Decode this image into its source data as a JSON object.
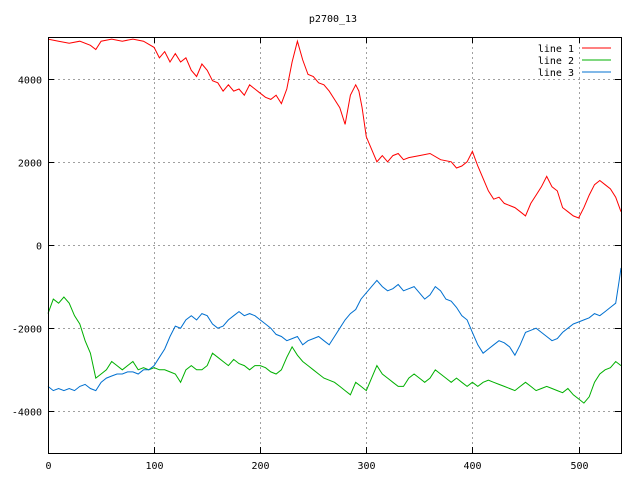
{
  "chart_data": {
    "type": "line",
    "title": "p2700_13",
    "xlim": [
      0,
      540
    ],
    "ylim": [
      -5000,
      5000
    ],
    "x_ticks": [
      0,
      100,
      200,
      300,
      400,
      500
    ],
    "y_ticks": [
      -4000,
      -2000,
      0,
      2000,
      4000
    ],
    "grid": true,
    "legend_position": "top-right",
    "series": [
      {
        "name": "line 1",
        "color": "#ff0000",
        "points": [
          [
            0,
            4950
          ],
          [
            10,
            4900
          ],
          [
            20,
            4850
          ],
          [
            30,
            4900
          ],
          [
            40,
            4800
          ],
          [
            45,
            4700
          ],
          [
            50,
            4900
          ],
          [
            60,
            4950
          ],
          [
            70,
            4900
          ],
          [
            80,
            4950
          ],
          [
            90,
            4900
          ],
          [
            100,
            4750
          ],
          [
            105,
            4500
          ],
          [
            110,
            4650
          ],
          [
            115,
            4400
          ],
          [
            120,
            4600
          ],
          [
            125,
            4400
          ],
          [
            130,
            4500
          ],
          [
            135,
            4200
          ],
          [
            140,
            4050
          ],
          [
            145,
            4350
          ],
          [
            150,
            4200
          ],
          [
            155,
            3950
          ],
          [
            160,
            3900
          ],
          [
            165,
            3700
          ],
          [
            170,
            3850
          ],
          [
            175,
            3700
          ],
          [
            180,
            3750
          ],
          [
            185,
            3600
          ],
          [
            190,
            3850
          ],
          [
            195,
            3750
          ],
          [
            200,
            3650
          ],
          [
            205,
            3550
          ],
          [
            210,
            3500
          ],
          [
            215,
            3600
          ],
          [
            220,
            3400
          ],
          [
            225,
            3750
          ],
          [
            230,
            4400
          ],
          [
            235,
            4900
          ],
          [
            240,
            4450
          ],
          [
            245,
            4100
          ],
          [
            250,
            4050
          ],
          [
            255,
            3900
          ],
          [
            260,
            3850
          ],
          [
            265,
            3700
          ],
          [
            270,
            3500
          ],
          [
            275,
            3300
          ],
          [
            280,
            2900
          ],
          [
            285,
            3600
          ],
          [
            290,
            3850
          ],
          [
            293,
            3700
          ],
          [
            296,
            3300
          ],
          [
            300,
            2600
          ],
          [
            305,
            2300
          ],
          [
            310,
            2000
          ],
          [
            315,
            2150
          ],
          [
            320,
            2000
          ],
          [
            325,
            2150
          ],
          [
            330,
            2200
          ],
          [
            335,
            2050
          ],
          [
            340,
            2100
          ],
          [
            350,
            2150
          ],
          [
            360,
            2200
          ],
          [
            370,
            2050
          ],
          [
            380,
            2000
          ],
          [
            385,
            1850
          ],
          [
            390,
            1900
          ],
          [
            395,
            2000
          ],
          [
            400,
            2250
          ],
          [
            405,
            1900
          ],
          [
            410,
            1600
          ],
          [
            415,
            1300
          ],
          [
            420,
            1100
          ],
          [
            425,
            1150
          ],
          [
            430,
            1000
          ],
          [
            435,
            950
          ],
          [
            440,
            900
          ],
          [
            445,
            800
          ],
          [
            450,
            700
          ],
          [
            455,
            1000
          ],
          [
            460,
            1200
          ],
          [
            465,
            1400
          ],
          [
            470,
            1650
          ],
          [
            475,
            1400
          ],
          [
            480,
            1300
          ],
          [
            485,
            900
          ],
          [
            490,
            800
          ],
          [
            495,
            700
          ],
          [
            500,
            650
          ],
          [
            505,
            900
          ],
          [
            510,
            1200
          ],
          [
            515,
            1450
          ],
          [
            520,
            1550
          ],
          [
            525,
            1450
          ],
          [
            530,
            1350
          ],
          [
            535,
            1150
          ],
          [
            540,
            800
          ]
        ]
      },
      {
        "name": "line 2",
        "color": "#00b000",
        "points": [
          [
            0,
            -1650
          ],
          [
            5,
            -1300
          ],
          [
            10,
            -1400
          ],
          [
            15,
            -1250
          ],
          [
            20,
            -1400
          ],
          [
            25,
            -1700
          ],
          [
            30,
            -1900
          ],
          [
            35,
            -2300
          ],
          [
            40,
            -2600
          ],
          [
            45,
            -3200
          ],
          [
            50,
            -3100
          ],
          [
            55,
            -3000
          ],
          [
            60,
            -2800
          ],
          [
            65,
            -2900
          ],
          [
            70,
            -3000
          ],
          [
            75,
            -2900
          ],
          [
            80,
            -2800
          ],
          [
            85,
            -3000
          ],
          [
            90,
            -2950
          ],
          [
            95,
            -3000
          ],
          [
            100,
            -2950
          ],
          [
            105,
            -3000
          ],
          [
            110,
            -3000
          ],
          [
            115,
            -3050
          ],
          [
            120,
            -3100
          ],
          [
            125,
            -3300
          ],
          [
            130,
            -3000
          ],
          [
            135,
            -2900
          ],
          [
            140,
            -3000
          ],
          [
            145,
            -3000
          ],
          [
            150,
            -2900
          ],
          [
            155,
            -2600
          ],
          [
            160,
            -2700
          ],
          [
            165,
            -2800
          ],
          [
            170,
            -2900
          ],
          [
            175,
            -2750
          ],
          [
            180,
            -2850
          ],
          [
            185,
            -2900
          ],
          [
            190,
            -3000
          ],
          [
            195,
            -2900
          ],
          [
            200,
            -2900
          ],
          [
            205,
            -2950
          ],
          [
            210,
            -3050
          ],
          [
            215,
            -3100
          ],
          [
            220,
            -3000
          ],
          [
            225,
            -2700
          ],
          [
            230,
            -2450
          ],
          [
            235,
            -2650
          ],
          [
            240,
            -2800
          ],
          [
            245,
            -2900
          ],
          [
            250,
            -3000
          ],
          [
            255,
            -3100
          ],
          [
            260,
            -3200
          ],
          [
            265,
            -3250
          ],
          [
            270,
            -3300
          ],
          [
            275,
            -3400
          ],
          [
            280,
            -3500
          ],
          [
            285,
            -3600
          ],
          [
            290,
            -3300
          ],
          [
            295,
            -3400
          ],
          [
            300,
            -3500
          ],
          [
            305,
            -3200
          ],
          [
            310,
            -2900
          ],
          [
            315,
            -3100
          ],
          [
            320,
            -3200
          ],
          [
            325,
            -3300
          ],
          [
            330,
            -3400
          ],
          [
            335,
            -3400
          ],
          [
            340,
            -3200
          ],
          [
            345,
            -3100
          ],
          [
            350,
            -3200
          ],
          [
            355,
            -3300
          ],
          [
            360,
            -3200
          ],
          [
            365,
            -3000
          ],
          [
            370,
            -3100
          ],
          [
            375,
            -3200
          ],
          [
            380,
            -3300
          ],
          [
            385,
            -3200
          ],
          [
            390,
            -3300
          ],
          [
            395,
            -3400
          ],
          [
            400,
            -3300
          ],
          [
            405,
            -3400
          ],
          [
            410,
            -3300
          ],
          [
            415,
            -3250
          ],
          [
            420,
            -3300
          ],
          [
            425,
            -3350
          ],
          [
            430,
            -3400
          ],
          [
            435,
            -3450
          ],
          [
            440,
            -3500
          ],
          [
            445,
            -3400
          ],
          [
            450,
            -3300
          ],
          [
            455,
            -3400
          ],
          [
            460,
            -3500
          ],
          [
            465,
            -3450
          ],
          [
            470,
            -3400
          ],
          [
            475,
            -3450
          ],
          [
            480,
            -3500
          ],
          [
            485,
            -3550
          ],
          [
            490,
            -3450
          ],
          [
            495,
            -3600
          ],
          [
            500,
            -3700
          ],
          [
            505,
            -3800
          ],
          [
            510,
            -3650
          ],
          [
            515,
            -3300
          ],
          [
            520,
            -3100
          ],
          [
            525,
            -3000
          ],
          [
            530,
            -2950
          ],
          [
            535,
            -2800
          ],
          [
            540,
            -2900
          ]
        ]
      },
      {
        "name": "line 3",
        "color": "#0070d0",
        "points": [
          [
            0,
            -3400
          ],
          [
            5,
            -3500
          ],
          [
            10,
            -3450
          ],
          [
            15,
            -3500
          ],
          [
            20,
            -3450
          ],
          [
            25,
            -3500
          ],
          [
            30,
            -3400
          ],
          [
            35,
            -3350
          ],
          [
            40,
            -3450
          ],
          [
            45,
            -3500
          ],
          [
            50,
            -3300
          ],
          [
            55,
            -3200
          ],
          [
            60,
            -3150
          ],
          [
            65,
            -3100
          ],
          [
            70,
            -3100
          ],
          [
            75,
            -3050
          ],
          [
            80,
            -3050
          ],
          [
            85,
            -3100
          ],
          [
            90,
            -3000
          ],
          [
            95,
            -3000
          ],
          [
            100,
            -2900
          ],
          [
            105,
            -2700
          ],
          [
            110,
            -2500
          ],
          [
            115,
            -2200
          ],
          [
            120,
            -1950
          ],
          [
            125,
            -2000
          ],
          [
            130,
            -1800
          ],
          [
            135,
            -1700
          ],
          [
            140,
            -1800
          ],
          [
            145,
            -1650
          ],
          [
            150,
            -1700
          ],
          [
            155,
            -1900
          ],
          [
            160,
            -2000
          ],
          [
            165,
            -1950
          ],
          [
            170,
            -1800
          ],
          [
            175,
            -1700
          ],
          [
            180,
            -1600
          ],
          [
            185,
            -1700
          ],
          [
            190,
            -1650
          ],
          [
            195,
            -1700
          ],
          [
            200,
            -1800
          ],
          [
            205,
            -1900
          ],
          [
            210,
            -2000
          ],
          [
            215,
            -2150
          ],
          [
            220,
            -2200
          ],
          [
            225,
            -2300
          ],
          [
            230,
            -2250
          ],
          [
            235,
            -2200
          ],
          [
            240,
            -2400
          ],
          [
            245,
            -2300
          ],
          [
            250,
            -2250
          ],
          [
            255,
            -2200
          ],
          [
            260,
            -2300
          ],
          [
            265,
            -2400
          ],
          [
            270,
            -2200
          ],
          [
            275,
            -2000
          ],
          [
            280,
            -1800
          ],
          [
            285,
            -1650
          ],
          [
            290,
            -1550
          ],
          [
            295,
            -1300
          ],
          [
            300,
            -1150
          ],
          [
            305,
            -1000
          ],
          [
            310,
            -850
          ],
          [
            315,
            -1000
          ],
          [
            320,
            -1100
          ],
          [
            325,
            -1050
          ],
          [
            330,
            -950
          ],
          [
            335,
            -1100
          ],
          [
            340,
            -1050
          ],
          [
            345,
            -1000
          ],
          [
            350,
            -1150
          ],
          [
            355,
            -1300
          ],
          [
            360,
            -1200
          ],
          [
            365,
            -1000
          ],
          [
            370,
            -1100
          ],
          [
            375,
            -1300
          ],
          [
            380,
            -1350
          ],
          [
            385,
            -1500
          ],
          [
            390,
            -1700
          ],
          [
            395,
            -1800
          ],
          [
            400,
            -2100
          ],
          [
            405,
            -2400
          ],
          [
            410,
            -2600
          ],
          [
            415,
            -2500
          ],
          [
            420,
            -2400
          ],
          [
            425,
            -2300
          ],
          [
            430,
            -2350
          ],
          [
            435,
            -2450
          ],
          [
            440,
            -2650
          ],
          [
            445,
            -2400
          ],
          [
            450,
            -2100
          ],
          [
            455,
            -2050
          ],
          [
            460,
            -2000
          ],
          [
            465,
            -2100
          ],
          [
            470,
            -2200
          ],
          [
            475,
            -2300
          ],
          [
            480,
            -2250
          ],
          [
            485,
            -2100
          ],
          [
            490,
            -2000
          ],
          [
            495,
            -1900
          ],
          [
            500,
            -1850
          ],
          [
            505,
            -1800
          ],
          [
            510,
            -1750
          ],
          [
            515,
            -1650
          ],
          [
            520,
            -1700
          ],
          [
            525,
            -1600
          ],
          [
            530,
            -1500
          ],
          [
            535,
            -1400
          ],
          [
            538,
            -900
          ],
          [
            540,
            -550
          ]
        ]
      }
    ]
  }
}
